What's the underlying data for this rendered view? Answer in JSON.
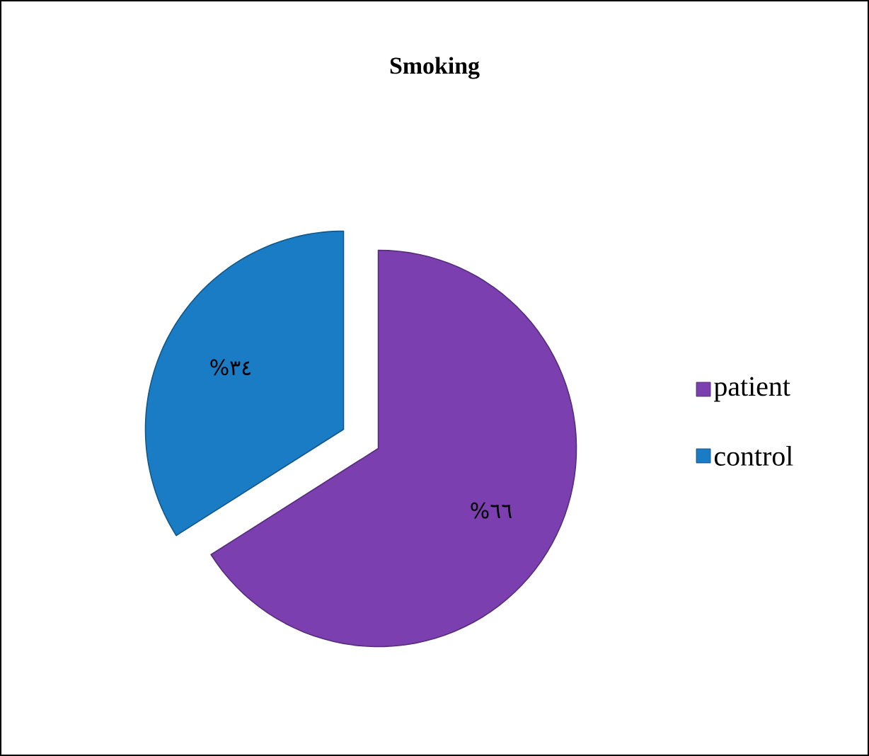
{
  "chart_data": {
    "type": "pie",
    "title": "Smoking",
    "categories": [
      "patient",
      "control"
    ],
    "values": [
      66,
      34
    ],
    "colors": [
      "#7b3fb0",
      "#1a7cc4"
    ],
    "value_labels": [
      "%٦٦",
      "%٣٤"
    ],
    "legend": "right"
  }
}
